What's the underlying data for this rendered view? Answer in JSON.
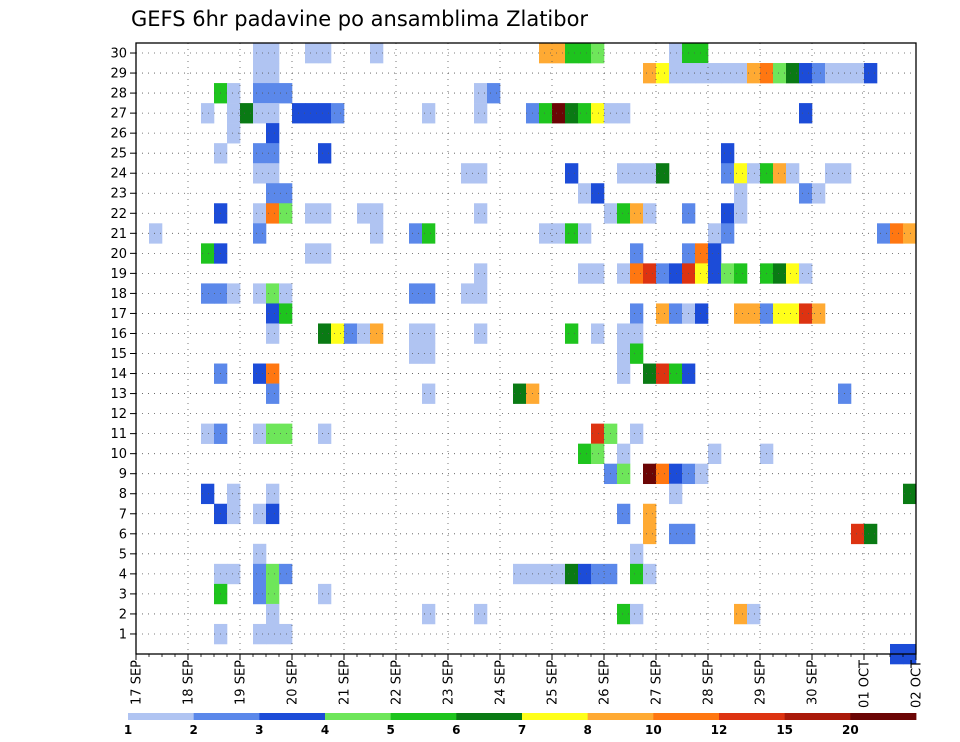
{
  "chart_data": {
    "type": "heatmap",
    "title": "GEFS 6hr padavine po ansamblima Zlatibor",
    "x_labels": [
      "17 SEP",
      "18 SEP",
      "19 SEP",
      "20 SEP",
      "21 SEP",
      "22 SEP",
      "23 SEP",
      "24 SEP",
      "25 SEP",
      "26 SEP",
      "27 SEP",
      "28 SEP",
      "29 SEP",
      "30 SEP",
      "01 OCT",
      "02 OCT"
    ],
    "x_range": [
      "17 SEP 00z",
      "02 OCT 00z"
    ],
    "x_step_hours": 6,
    "y_labels": [
      1,
      2,
      3,
      4,
      5,
      6,
      7,
      8,
      9,
      10,
      11,
      12,
      13,
      14,
      15,
      16,
      17,
      18,
      19,
      20,
      21,
      22,
      23,
      24,
      25,
      26,
      27,
      28,
      29,
      30
    ],
    "y_range": [
      0,
      30
    ],
    "grid": true,
    "colorbar": {
      "position": "bottom",
      "labels": [
        "1",
        "2",
        "3",
        "4",
        "5",
        "6",
        "7",
        "8",
        "10",
        "12",
        "15",
        "20"
      ],
      "colors": [
        "#b0c4f2",
        "#5b88ea",
        "#1c4cd8",
        "#6ee65a",
        "#1ec41e",
        "#0a7a14",
        "#ffff1a",
        "#ffaa33",
        "#ff7711",
        "#dd3311",
        "#aa1a0a",
        "#6b0505"
      ]
    },
    "series": [
      {
        "member": 30,
        "cells": [
          [
            9,
            0
          ],
          [
            10,
            0
          ],
          [
            13,
            0
          ],
          [
            14,
            0
          ],
          [
            18,
            0
          ],
          [
            31,
            7
          ],
          [
            32,
            7
          ],
          [
            33,
            4
          ],
          [
            34,
            4
          ],
          [
            35,
            3
          ],
          [
            41,
            0
          ],
          [
            42,
            4
          ],
          [
            43,
            4
          ]
        ]
      },
      {
        "member": 29,
        "cells": [
          [
            9,
            0
          ],
          [
            10,
            0
          ],
          [
            39,
            7
          ],
          [
            40,
            6
          ],
          [
            41,
            0
          ],
          [
            42,
            0
          ],
          [
            43,
            0
          ],
          [
            44,
            0
          ],
          [
            45,
            0
          ],
          [
            46,
            0
          ],
          [
            47,
            7
          ],
          [
            48,
            8
          ],
          [
            49,
            3
          ],
          [
            50,
            5
          ],
          [
            51,
            2
          ],
          [
            52,
            1
          ],
          [
            53,
            0
          ],
          [
            54,
            0
          ],
          [
            55,
            0
          ],
          [
            56,
            2
          ]
        ]
      },
      {
        "member": 28,
        "cells": [
          [
            6,
            4
          ],
          [
            7,
            0
          ],
          [
            9,
            1
          ],
          [
            10,
            1
          ],
          [
            11,
            1
          ],
          [
            26,
            0
          ],
          [
            27,
            1
          ]
        ]
      },
      {
        "member": 27,
        "cells": [
          [
            5,
            0
          ],
          [
            7,
            0
          ],
          [
            8,
            5
          ],
          [
            9,
            0
          ],
          [
            10,
            0
          ],
          [
            12,
            2
          ],
          [
            13,
            2
          ],
          [
            14,
            2
          ],
          [
            15,
            1
          ],
          [
            22,
            0
          ],
          [
            26,
            0
          ],
          [
            30,
            1
          ],
          [
            31,
            4
          ],
          [
            32,
            11
          ],
          [
            33,
            5
          ],
          [
            34,
            4
          ],
          [
            35,
            6
          ],
          [
            36,
            0
          ],
          [
            37,
            0
          ],
          [
            51,
            2
          ]
        ]
      },
      {
        "member": 26,
        "cells": [
          [
            7,
            0
          ],
          [
            10,
            2
          ]
        ]
      },
      {
        "member": 25,
        "cells": [
          [
            6,
            0
          ],
          [
            9,
            1
          ],
          [
            10,
            1
          ],
          [
            14,
            2
          ],
          [
            45,
            2
          ]
        ]
      },
      {
        "member": 24,
        "cells": [
          [
            9,
            0
          ],
          [
            10,
            0
          ],
          [
            25,
            0
          ],
          [
            26,
            0
          ],
          [
            33,
            2
          ],
          [
            37,
            0
          ],
          [
            38,
            0
          ],
          [
            39,
            0
          ],
          [
            40,
            5
          ],
          [
            45,
            1
          ],
          [
            46,
            6
          ],
          [
            47,
            0
          ],
          [
            48,
            4
          ],
          [
            49,
            7
          ],
          [
            50,
            0
          ],
          [
            53,
            0
          ],
          [
            54,
            0
          ]
        ]
      },
      {
        "member": 23,
        "cells": [
          [
            10,
            1
          ],
          [
            11,
            1
          ],
          [
            34,
            0
          ],
          [
            35,
            2
          ],
          [
            46,
            0
          ],
          [
            51,
            1
          ],
          [
            52,
            0
          ]
        ]
      },
      {
        "member": 22,
        "cells": [
          [
            6,
            2
          ],
          [
            9,
            0
          ],
          [
            10,
            8
          ],
          [
            11,
            3
          ],
          [
            13,
            0
          ],
          [
            14,
            0
          ],
          [
            17,
            0
          ],
          [
            18,
            0
          ],
          [
            26,
            0
          ],
          [
            36,
            0
          ],
          [
            37,
            4
          ],
          [
            38,
            7
          ],
          [
            39,
            0
          ],
          [
            42,
            1
          ],
          [
            45,
            2
          ],
          [
            46,
            0
          ]
        ]
      },
      {
        "member": 21,
        "cells": [
          [
            1,
            0
          ],
          [
            9,
            1
          ],
          [
            18,
            0
          ],
          [
            21,
            1
          ],
          [
            22,
            4
          ],
          [
            31,
            0
          ],
          [
            32,
            0
          ],
          [
            33,
            4
          ],
          [
            34,
            0
          ],
          [
            44,
            0
          ],
          [
            45,
            1
          ],
          [
            57,
            1
          ],
          [
            58,
            8
          ],
          [
            59,
            7
          ]
        ]
      },
      {
        "member": 20,
        "cells": [
          [
            5,
            4
          ],
          [
            6,
            2
          ],
          [
            13,
            0
          ],
          [
            14,
            0
          ],
          [
            38,
            1
          ],
          [
            42,
            1
          ],
          [
            43,
            8
          ],
          [
            44,
            2
          ]
        ]
      },
      {
        "member": 19,
        "cells": [
          [
            26,
            0
          ],
          [
            34,
            0
          ],
          [
            35,
            0
          ],
          [
            37,
            0
          ],
          [
            38,
            8
          ],
          [
            39,
            9
          ],
          [
            40,
            1
          ],
          [
            41,
            2
          ],
          [
            42,
            9
          ],
          [
            43,
            6
          ],
          [
            44,
            2
          ],
          [
            45,
            3
          ],
          [
            46,
            4
          ],
          [
            48,
            4
          ],
          [
            49,
            5
          ],
          [
            50,
            6
          ],
          [
            51,
            0
          ]
        ]
      },
      {
        "member": 18,
        "cells": [
          [
            5,
            1
          ],
          [
            6,
            1
          ],
          [
            7,
            0
          ],
          [
            9,
            0
          ],
          [
            10,
            3
          ],
          [
            11,
            0
          ],
          [
            21,
            1
          ],
          [
            22,
            1
          ],
          [
            25,
            0
          ],
          [
            26,
            0
          ]
        ]
      },
      {
        "member": 17,
        "cells": [
          [
            10,
            2
          ],
          [
            11,
            4
          ],
          [
            38,
            1
          ],
          [
            40,
            7
          ],
          [
            41,
            1
          ],
          [
            42,
            0
          ],
          [
            43,
            2
          ],
          [
            46,
            7
          ],
          [
            47,
            7
          ],
          [
            48,
            1
          ],
          [
            49,
            6
          ],
          [
            50,
            6
          ],
          [
            51,
            9
          ],
          [
            52,
            7
          ]
        ]
      },
      {
        "member": 16,
        "cells": [
          [
            10,
            0
          ],
          [
            14,
            5
          ],
          [
            15,
            6
          ],
          [
            16,
            1
          ],
          [
            17,
            0
          ],
          [
            18,
            7
          ],
          [
            21,
            0
          ],
          [
            22,
            0
          ],
          [
            26,
            0
          ],
          [
            33,
            4
          ],
          [
            35,
            0
          ],
          [
            37,
            0
          ],
          [
            38,
            0
          ]
        ]
      },
      {
        "member": 15,
        "cells": [
          [
            21,
            0
          ],
          [
            22,
            0
          ],
          [
            37,
            0
          ],
          [
            38,
            4
          ]
        ]
      },
      {
        "member": 14,
        "cells": [
          [
            6,
            1
          ],
          [
            9,
            2
          ],
          [
            10,
            8
          ],
          [
            37,
            0
          ],
          [
            39,
            5
          ],
          [
            40,
            9
          ],
          [
            41,
            4
          ],
          [
            42,
            2
          ]
        ]
      },
      {
        "member": 13,
        "cells": [
          [
            10,
            1
          ],
          [
            22,
            0
          ],
          [
            29,
            5
          ],
          [
            30,
            7
          ],
          [
            54,
            1
          ]
        ]
      },
      {
        "member": 12,
        "cells": []
      },
      {
        "member": 11,
        "cells": [
          [
            5,
            0
          ],
          [
            6,
            1
          ],
          [
            9,
            0
          ],
          [
            10,
            3
          ],
          [
            11,
            3
          ],
          [
            14,
            0
          ],
          [
            35,
            9
          ],
          [
            36,
            3
          ],
          [
            38,
            0
          ]
        ]
      },
      {
        "member": 10,
        "cells": [
          [
            34,
            4
          ],
          [
            35,
            3
          ],
          [
            37,
            0
          ],
          [
            44,
            0
          ],
          [
            48,
            0
          ]
        ]
      },
      {
        "member": 9,
        "cells": [
          [
            36,
            1
          ],
          [
            37,
            3
          ],
          [
            39,
            11
          ],
          [
            40,
            8
          ],
          [
            41,
            2
          ],
          [
            42,
            1
          ],
          [
            43,
            0
          ]
        ]
      },
      {
        "member": 8,
        "cells": [
          [
            5,
            2
          ],
          [
            7,
            0
          ],
          [
            10,
            0
          ],
          [
            41,
            0
          ],
          [
            59,
            5
          ]
        ]
      },
      {
        "member": 7,
        "cells": [
          [
            6,
            2
          ],
          [
            7,
            0
          ],
          [
            9,
            0
          ],
          [
            10,
            2
          ],
          [
            37,
            1
          ],
          [
            39,
            7
          ]
        ]
      },
      {
        "member": 6,
        "cells": [
          [
            39,
            7
          ],
          [
            41,
            1
          ],
          [
            42,
            1
          ],
          [
            55,
            9
          ],
          [
            56,
            5
          ]
        ]
      },
      {
        "member": 5,
        "cells": [
          [
            9,
            0
          ],
          [
            38,
            0
          ]
        ]
      },
      {
        "member": 4,
        "cells": [
          [
            6,
            0
          ],
          [
            7,
            0
          ],
          [
            9,
            1
          ],
          [
            10,
            3
          ],
          [
            11,
            1
          ],
          [
            29,
            0
          ],
          [
            30,
            0
          ],
          [
            31,
            0
          ],
          [
            32,
            0
          ],
          [
            33,
            5
          ],
          [
            34,
            2
          ],
          [
            35,
            1
          ],
          [
            36,
            1
          ],
          [
            38,
            4
          ],
          [
            39,
            0
          ]
        ]
      },
      {
        "member": 3,
        "cells": [
          [
            6,
            4
          ],
          [
            9,
            1
          ],
          [
            10,
            3
          ],
          [
            14,
            0
          ]
        ]
      },
      {
        "member": 2,
        "cells": [
          [
            10,
            0
          ],
          [
            22,
            0
          ],
          [
            26,
            0
          ],
          [
            37,
            4
          ],
          [
            38,
            0
          ],
          [
            46,
            7
          ],
          [
            47,
            0
          ]
        ]
      },
      {
        "member": 1,
        "cells": [
          [
            6,
            0
          ],
          [
            9,
            0
          ],
          [
            10,
            0
          ],
          [
            11,
            0
          ]
        ]
      },
      {
        "member": 0,
        "cells": [
          [
            58,
            2
          ],
          [
            59,
            2
          ]
        ]
      }
    ]
  }
}
